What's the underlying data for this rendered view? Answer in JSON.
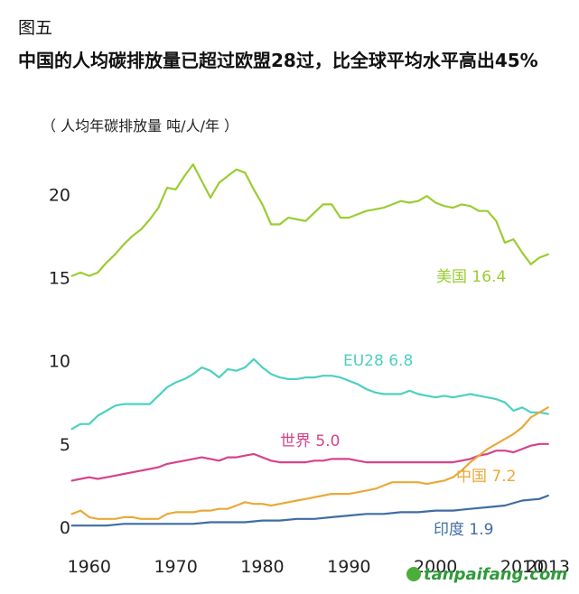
{
  "figure_label": "图五",
  "title": "中国的人均碳排放量已超过欧盟28过，比全球平均水平高出45%",
  "unit_label": "（ 人均年碳排放量  吨/人/年 ）",
  "watermark": "tanpaifang.com",
  "chart_data": {
    "type": "line",
    "xlim": [
      1957,
      2015
    ],
    "ylim": [
      0,
      23
    ],
    "yticks": [
      0,
      5,
      10,
      15,
      20
    ],
    "xticks": [
      {
        "value": 1960,
        "label": "1960"
      },
      {
        "value": 1970,
        "label": "1970"
      },
      {
        "value": 1980,
        "label": "1980"
      },
      {
        "value": 1990,
        "label": "1990"
      },
      {
        "value": 2000,
        "label": "2000"
      },
      {
        "value": 2010,
        "label": "2010"
      },
      {
        "value": 2013,
        "label": "2013"
      }
    ],
    "series": [
      {
        "name": "美国",
        "label": "美国 16.4",
        "color": "#9acd32",
        "x": [
          1958,
          1959,
          1960,
          1961,
          1962,
          1963,
          1964,
          1965,
          1966,
          1967,
          1968,
          1969,
          1970,
          1971,
          1972,
          1973,
          1974,
          1975,
          1976,
          1977,
          1978,
          1979,
          1980,
          1981,
          1982,
          1983,
          1984,
          1985,
          1986,
          1987,
          1988,
          1989,
          1990,
          1991,
          1992,
          1993,
          1994,
          1995,
          1996,
          1997,
          1998,
          1999,
          2000,
          2001,
          2002,
          2003,
          2004,
          2005,
          2006,
          2007,
          2008,
          2009,
          2010,
          2011,
          2012,
          2013
        ],
        "y": [
          15.1,
          15.3,
          15.1,
          15.3,
          15.9,
          16.4,
          17.0,
          17.5,
          17.9,
          18.5,
          19.2,
          20.4,
          20.3,
          21.1,
          21.8,
          20.8,
          19.8,
          20.7,
          21.1,
          21.5,
          21.3,
          20.3,
          19.4,
          18.2,
          18.2,
          18.6,
          18.5,
          18.4,
          18.9,
          19.4,
          19.4,
          18.6,
          18.6,
          18.8,
          19.0,
          19.1,
          19.2,
          19.4,
          19.6,
          19.5,
          19.6,
          19.9,
          19.5,
          19.3,
          19.2,
          19.4,
          19.3,
          19.0,
          19.0,
          18.4,
          17.1,
          17.3,
          16.5,
          15.8,
          16.2,
          16.4
        ]
      },
      {
        "name": "EU28",
        "label": "EU28 6.8",
        "color": "#4dd0c2",
        "x": [
          1958,
          1959,
          1960,
          1961,
          1962,
          1963,
          1964,
          1965,
          1966,
          1967,
          1968,
          1969,
          1970,
          1971,
          1972,
          1973,
          1974,
          1975,
          1976,
          1977,
          1978,
          1979,
          1980,
          1981,
          1982,
          1983,
          1984,
          1985,
          1986,
          1987,
          1988,
          1989,
          1990,
          1991,
          1992,
          1993,
          1994,
          1995,
          1996,
          1997,
          1998,
          1999,
          2000,
          2001,
          2002,
          2003,
          2004,
          2005,
          2006,
          2007,
          2008,
          2009,
          2010,
          2011,
          2012,
          2013
        ],
        "y": [
          5.9,
          6.2,
          6.2,
          6.7,
          7.0,
          7.3,
          7.4,
          7.4,
          7.4,
          7.4,
          7.9,
          8.4,
          8.7,
          8.9,
          9.2,
          9.6,
          9.4,
          9.0,
          9.5,
          9.4,
          9.6,
          10.1,
          9.6,
          9.2,
          9.0,
          8.9,
          8.9,
          9.0,
          9.0,
          9.1,
          9.1,
          9.0,
          8.8,
          8.6,
          8.3,
          8.1,
          8.0,
          8.0,
          8.0,
          8.2,
          8.0,
          7.9,
          7.8,
          7.9,
          7.8,
          7.9,
          8.0,
          7.9,
          7.8,
          7.7,
          7.5,
          7.0,
          7.2,
          6.9,
          6.9,
          6.8
        ]
      },
      {
        "name": "世界",
        "label": "世界 5.0",
        "color": "#d6428a",
        "x": [
          1958,
          1959,
          1960,
          1961,
          1962,
          1963,
          1964,
          1965,
          1966,
          1967,
          1968,
          1969,
          1970,
          1971,
          1972,
          1973,
          1974,
          1975,
          1976,
          1977,
          1978,
          1979,
          1980,
          1981,
          1982,
          1983,
          1984,
          1985,
          1986,
          1987,
          1988,
          1989,
          1990,
          1991,
          1992,
          1993,
          1994,
          1995,
          1996,
          1997,
          1998,
          1999,
          2000,
          2001,
          2002,
          2003,
          2004,
          2005,
          2006,
          2007,
          2008,
          2009,
          2010,
          2011,
          2012,
          2013
        ],
        "y": [
          2.8,
          2.9,
          3.0,
          2.9,
          3.0,
          3.1,
          3.2,
          3.3,
          3.4,
          3.5,
          3.6,
          3.8,
          3.9,
          4.0,
          4.1,
          4.2,
          4.1,
          4.0,
          4.2,
          4.2,
          4.3,
          4.4,
          4.2,
          4.0,
          3.9,
          3.9,
          3.9,
          3.9,
          4.0,
          4.0,
          4.1,
          4.1,
          4.1,
          4.0,
          3.9,
          3.9,
          3.9,
          3.9,
          3.9,
          3.9,
          3.9,
          3.9,
          3.9,
          3.9,
          3.9,
          4.0,
          4.1,
          4.3,
          4.4,
          4.6,
          4.6,
          4.5,
          4.7,
          4.9,
          5.0,
          5.0
        ]
      },
      {
        "name": "中国",
        "label": "中国 7.2",
        "color": "#e9a93a",
        "x": [
          1958,
          1959,
          1960,
          1961,
          1962,
          1963,
          1964,
          1965,
          1966,
          1967,
          1968,
          1969,
          1970,
          1971,
          1972,
          1973,
          1974,
          1975,
          1976,
          1977,
          1978,
          1979,
          1980,
          1981,
          1982,
          1983,
          1984,
          1985,
          1986,
          1987,
          1988,
          1989,
          1990,
          1991,
          1992,
          1993,
          1994,
          1995,
          1996,
          1997,
          1998,
          1999,
          2000,
          2001,
          2002,
          2003,
          2004,
          2005,
          2006,
          2007,
          2008,
          2009,
          2010,
          2011,
          2012,
          2013
        ],
        "y": [
          0.8,
          1.0,
          0.6,
          0.5,
          0.5,
          0.5,
          0.6,
          0.6,
          0.5,
          0.5,
          0.5,
          0.8,
          0.9,
          0.9,
          0.9,
          1.0,
          1.0,
          1.1,
          1.1,
          1.3,
          1.5,
          1.4,
          1.4,
          1.3,
          1.4,
          1.5,
          1.6,
          1.7,
          1.8,
          1.9,
          2.0,
          2.0,
          2.0,
          2.1,
          2.2,
          2.3,
          2.5,
          2.7,
          2.7,
          2.7,
          2.7,
          2.6,
          2.7,
          2.8,
          3.0,
          3.4,
          3.9,
          4.3,
          4.7,
          5.0,
          5.3,
          5.6,
          6.0,
          6.6,
          6.9,
          7.2
        ]
      },
      {
        "name": "印度",
        "label": "印度 1.9",
        "color": "#3f6ca3",
        "x": [
          1958,
          1960,
          1962,
          1964,
          1966,
          1968,
          1970,
          1972,
          1974,
          1976,
          1978,
          1980,
          1982,
          1984,
          1986,
          1988,
          1990,
          1992,
          1994,
          1996,
          1998,
          2000,
          2002,
          2004,
          2006,
          2008,
          2010,
          2012,
          2013
        ],
        "y": [
          0.1,
          0.1,
          0.1,
          0.2,
          0.2,
          0.2,
          0.2,
          0.2,
          0.3,
          0.3,
          0.3,
          0.4,
          0.4,
          0.5,
          0.5,
          0.6,
          0.7,
          0.8,
          0.8,
          0.9,
          0.9,
          1.0,
          1.0,
          1.1,
          1.2,
          1.3,
          1.6,
          1.7,
          1.9
        ]
      }
    ]
  }
}
